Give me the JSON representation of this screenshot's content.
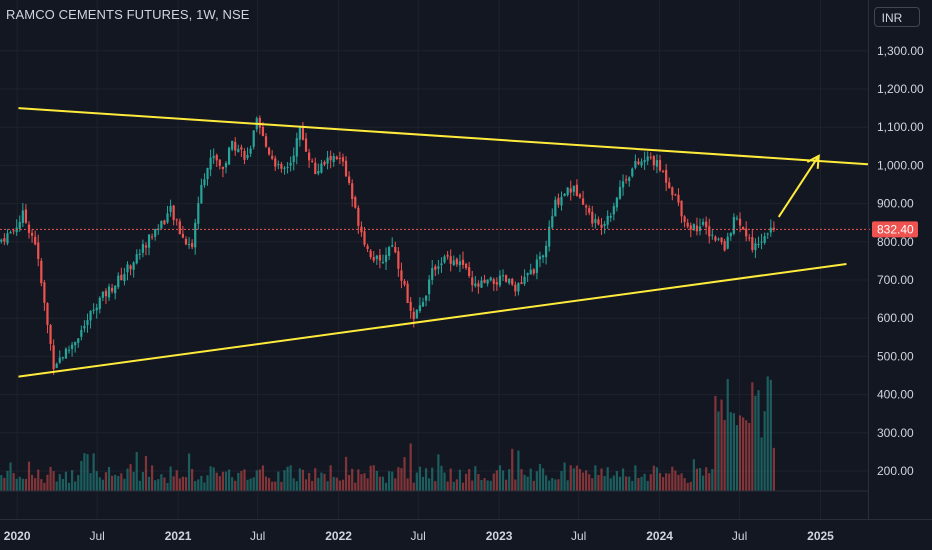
{
  "header": {
    "title": "RAMCO CEMENTS FUTURES, 1W, NSE",
    "currency": "INR"
  },
  "chart_data": {
    "type": "candlestick",
    "symbol": "RAMCO CEMENTS FUTURES",
    "interval": "1W",
    "exchange": "NSE",
    "currency": "INR",
    "last_price": 832.4,
    "last_price_label": "832.40",
    "ylim": [
      110,
      1410
    ],
    "xlim": [
      "2019-11-23",
      "2025-04-19"
    ],
    "y_ticks": [
      200,
      300,
      400,
      500,
      600,
      700,
      800,
      900,
      1000,
      1100,
      1200,
      1300
    ],
    "y_tick_labels": [
      "200.00",
      "300.00",
      "400.00",
      "500.00",
      "600.00",
      "700.00",
      "800.00",
      "900.00",
      "1,000.00",
      "1,100.00",
      "1,200.00",
      "1,300.00"
    ],
    "x_ticks": [
      "2020-01-01",
      "2020-07-01",
      "2021-01-01",
      "2021-07-01",
      "2022-01-01",
      "2022-07-01",
      "2023-01-01",
      "2023-07-01",
      "2024-01-01",
      "2024-07-01",
      "2025-01-01"
    ],
    "x_tick_labels": [
      "2020",
      "Jul",
      "2021",
      "Jul",
      "2022",
      "Jul",
      "2023",
      "Jul",
      "2024",
      "Jul",
      "2025"
    ],
    "price_path": [
      [
        "2019-11-23",
        800
      ],
      [
        "2019-12-28",
        830
      ],
      [
        "2020-01-18",
        870
      ],
      [
        "2020-02-15",
        800
      ],
      [
        "2020-03-14",
        580
      ],
      [
        "2020-03-28",
        480
      ],
      [
        "2020-05-02",
        520
      ],
      [
        "2020-06-06",
        580
      ],
      [
        "2020-07-04",
        640
      ],
      [
        "2020-08-15",
        690
      ],
      [
        "2020-09-26",
        750
      ],
      [
        "2020-11-07",
        820
      ],
      [
        "2020-12-19",
        880
      ],
      [
        "2021-01-16",
        810
      ],
      [
        "2021-02-06",
        790
      ],
      [
        "2021-02-27",
        960
      ],
      [
        "2021-03-27",
        1030
      ],
      [
        "2021-04-17",
        990
      ],
      [
        "2021-05-08",
        1060
      ],
      [
        "2021-06-12",
        1020
      ],
      [
        "2021-07-03",
        1110
      ],
      [
        "2021-07-24",
        1050
      ],
      [
        "2021-08-28",
        980
      ],
      [
        "2021-09-18",
        1010
      ],
      [
        "2021-10-09",
        1090
      ],
      [
        "2021-11-13",
        980
      ],
      [
        "2021-12-18",
        1020
      ],
      [
        "2022-01-15",
        1010
      ],
      [
        "2022-02-12",
        880
      ],
      [
        "2022-03-12",
        780
      ],
      [
        "2022-04-09",
        740
      ],
      [
        "2022-05-07",
        800
      ],
      [
        "2022-06-04",
        680
      ],
      [
        "2022-06-25",
        590
      ],
      [
        "2022-07-16",
        650
      ],
      [
        "2022-08-13",
        740
      ],
      [
        "2022-09-10",
        760
      ],
      [
        "2022-10-15",
        740
      ],
      [
        "2022-11-05",
        680
      ],
      [
        "2022-12-03",
        690
      ],
      [
        "2023-01-14",
        700
      ],
      [
        "2023-02-18",
        680
      ],
      [
        "2023-03-25",
        730
      ],
      [
        "2023-04-15",
        760
      ],
      [
        "2023-05-13",
        900
      ],
      [
        "2023-06-10",
        940
      ],
      [
        "2023-07-08",
        930
      ],
      [
        "2023-07-29",
        870
      ],
      [
        "2023-08-19",
        840
      ],
      [
        "2023-09-16",
        880
      ],
      [
        "2023-10-14",
        960
      ],
      [
        "2023-11-11",
        1000
      ],
      [
        "2023-12-16",
        1020
      ],
      [
        "2024-01-13",
        980
      ],
      [
        "2024-02-10",
        920
      ],
      [
        "2024-03-09",
        840
      ],
      [
        "2024-04-13",
        840
      ],
      [
        "2024-05-11",
        810
      ],
      [
        "2024-06-01",
        780
      ],
      [
        "2024-06-22",
        860
      ],
      [
        "2024-07-13",
        830
      ],
      [
        "2024-08-03",
        780
      ],
      [
        "2024-08-24",
        810
      ],
      [
        "2024-09-14",
        832.4
      ]
    ],
    "annotations": [
      {
        "type": "trendline",
        "name": "upper-trendline",
        "from": [
          "2020-01-04",
          1150
        ],
        "to": [
          "2025-04-19",
          1003
        ]
      },
      {
        "type": "trendline",
        "name": "lower-trendline",
        "from": [
          "2020-01-04",
          447
        ],
        "to": [
          "2025-03-01",
          742
        ]
      },
      {
        "type": "arrow",
        "name": "projection-arrow",
        "from": [
          "2024-09-28",
          865
        ],
        "to": [
          "2024-12-28",
          1025
        ]
      }
    ],
    "colors": {
      "background": "#131722",
      "up": "#26a69a",
      "down": "#ef5350",
      "trendline": "#ffeb3b",
      "price_line": "#ef5350",
      "axis_text": "#d1d4dc",
      "grid": "#1e222d"
    }
  }
}
